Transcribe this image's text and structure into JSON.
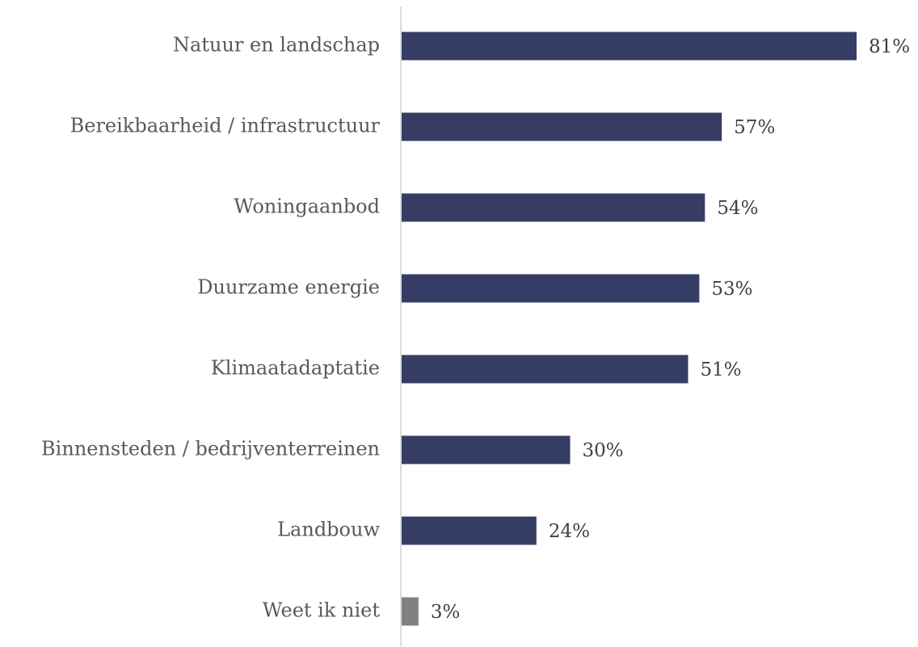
{
  "chart_data": {
    "type": "hbar",
    "categories": [
      "Natuur en landschap",
      "Bereikbaarheid / infrastructuur",
      "Woningaanbod",
      "Duurzame energie",
      "Klimaatadaptatie",
      "Binnensteden / bedrijventerreinen",
      "Landbouw",
      "Weet ik niet"
    ],
    "values": [
      81,
      57,
      54,
      53,
      51,
      30,
      24,
      3
    ],
    "value_labels": [
      "81%",
      "57%",
      "54%",
      "53%",
      "51%",
      "30%",
      "24%",
      "3%"
    ],
    "colors": [
      "#363d65",
      "#363d65",
      "#363d65",
      "#363d65",
      "#363d65",
      "#363d65",
      "#363d65",
      "#808080"
    ]
  }
}
